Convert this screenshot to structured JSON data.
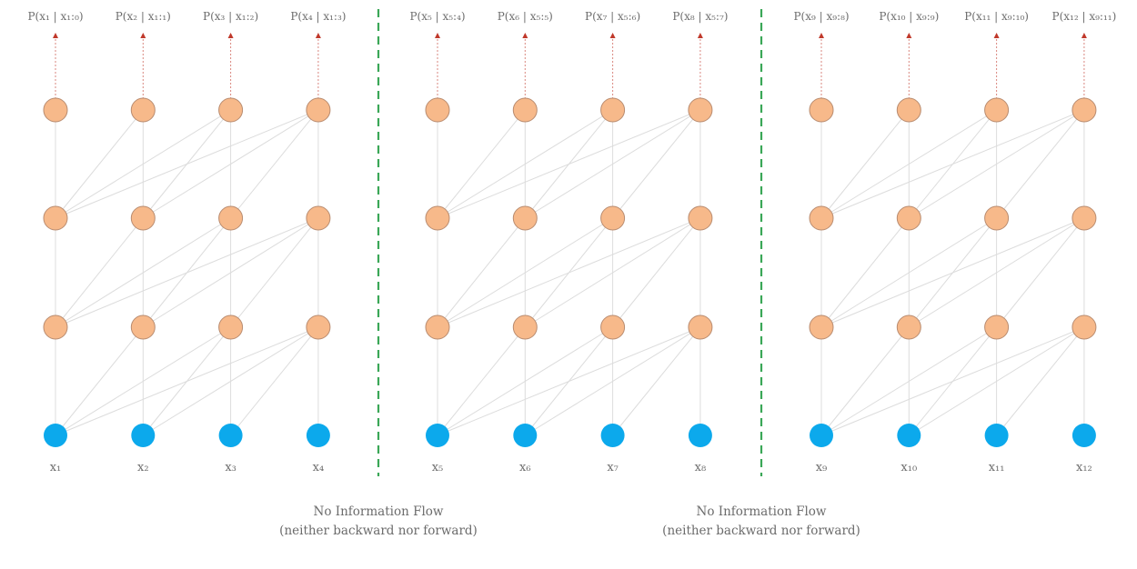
{
  "diagram": {
    "colors": {
      "hidden_node": "#f7b98a",
      "hidden_node_stroke": "#b98c70",
      "input_node": "#0ca9ec",
      "edge": "#dcdcdc",
      "output_arrow": "#c0392b",
      "separator": "#3aa757"
    },
    "blocks": [
      {
        "inputs": [
          "x₁",
          "x₂",
          "x₃",
          "x₄"
        ],
        "outputs": [
          "P(x₁ | x₁:₀)",
          "P(x₂ | x₁:₁)",
          "P(x₃ | x₁:₂)",
          "P(x₄ | x₁:₃)"
        ]
      },
      {
        "inputs": [
          "x₅",
          "x₆",
          "x₇",
          "x₈"
        ],
        "outputs": [
          "P(x₅ | x₅:₄)",
          "P(x₆ | x₅:₅)",
          "P(x₇ | x₅:₆)",
          "P(x₈ | x₅:₇)"
        ]
      },
      {
        "inputs": [
          "x₉",
          "x₁₀",
          "x₁₁",
          "x₁₂"
        ],
        "outputs": [
          "P(x₉ | x₉:₈)",
          "P(x₁₀ | x₉:₉)",
          "P(x₁₁ | x₉:₁₀)",
          "P(x₁₂ | x₉:₁₁)"
        ]
      }
    ],
    "hidden_layers": 3,
    "separator_notes": [
      {
        "line1": "No Information Flow",
        "line2": "(neither backward nor forward)"
      },
      {
        "line1": "No Information Flow",
        "line2": "(neither backward nor forward)"
      }
    ]
  }
}
